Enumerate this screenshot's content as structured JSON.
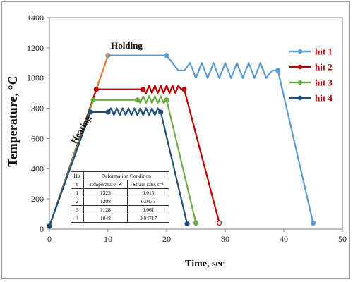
{
  "chart_data": {
    "type": "line",
    "xlabel": "Time, sec",
    "ylabel": "Temperature, °C",
    "xlim": [
      0,
      50
    ],
    "ylim": [
      0,
      1400
    ],
    "xticks": [
      0,
      10,
      20,
      30,
      40,
      50
    ],
    "yticks": [
      0,
      200,
      400,
      600,
      800,
      1000,
      1200,
      1400
    ],
    "grid": false,
    "legend_position": "right",
    "annotations": [
      {
        "text": "Holding",
        "x": 10.5,
        "y": 1195
      },
      {
        "text": "Heating",
        "x": 4.5,
        "y": 560,
        "rotation": -60
      }
    ],
    "series": [
      {
        "name": "hit 1",
        "color": "#5b9bd5",
        "x": [
          0,
          10,
          20,
          22,
          23,
          24,
          25,
          26,
          27,
          28,
          29,
          30,
          31,
          32,
          33,
          34,
          35,
          36,
          37,
          38,
          39,
          45
        ],
        "y": [
          20,
          1150,
          1150,
          1050,
          1050,
          1100,
          1000,
          1100,
          1000,
          1100,
          1000,
          1100,
          1000,
          1100,
          1000,
          1100,
          1000,
          1100,
          1000,
          1050,
          1050,
          40
        ]
      },
      {
        "name": "hit 2",
        "color": "#c00000",
        "x": [
          0,
          8,
          16,
          16.5,
          17,
          17.5,
          18,
          18.5,
          19,
          19.5,
          20,
          20.5,
          21,
          21.5,
          22,
          22.5,
          23,
          29
        ],
        "y": [
          20,
          925,
          925,
          900,
          950,
          900,
          950,
          900,
          950,
          900,
          950,
          900,
          950,
          900,
          950,
          925,
          925,
          40
        ]
      },
      {
        "name": "hit 3",
        "color": "#70ad47",
        "x": [
          0,
          7.5,
          15,
          15.5,
          16,
          16.5,
          17,
          17.5,
          18,
          18.5,
          19,
          19.5,
          20,
          25
        ],
        "y": [
          20,
          855,
          855,
          835,
          880,
          835,
          880,
          835,
          880,
          835,
          880,
          835,
          855,
          40
        ]
      },
      {
        "name": "hit 4",
        "color": "#1f4e79",
        "x": [
          0,
          7,
          10,
          10.5,
          11,
          11.5,
          12,
          12.5,
          13,
          13.5,
          14,
          14.5,
          15,
          15.5,
          16,
          16.5,
          17,
          17.5,
          18,
          18.5,
          19,
          23.5
        ],
        "y": [
          20,
          775,
          775,
          800,
          755,
          800,
          755,
          800,
          755,
          800,
          755,
          800,
          755,
          800,
          755,
          800,
          755,
          800,
          755,
          800,
          775,
          35
        ]
      }
    ],
    "table": {
      "header_row1": [
        "Hit",
        "Deformation  Condition"
      ],
      "header_row2": [
        "#",
        "Temperature, K",
        "Strain rate, s⁻¹"
      ],
      "rows": [
        [
          "1",
          "1323",
          "0.015"
        ],
        [
          "2",
          "1208",
          "0.0437"
        ],
        [
          "3",
          "1128",
          "0.061"
        ],
        [
          "4",
          "1048",
          "0.04717"
        ]
      ]
    }
  }
}
